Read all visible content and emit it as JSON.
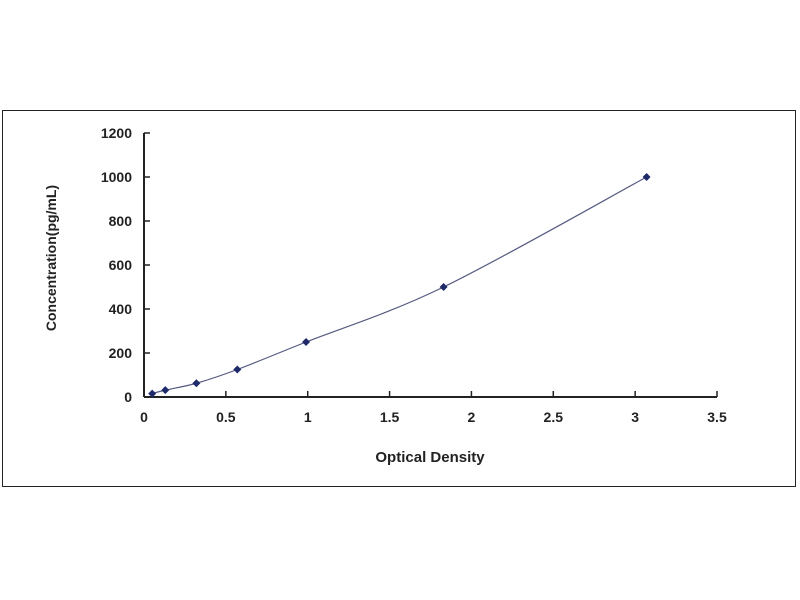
{
  "chart_data": {
    "type": "scatter",
    "title": "",
    "xlabel": "Optical Density",
    "ylabel": "Concentration(pg/mL)",
    "xlim": [
      0,
      3.5
    ],
    "ylim": [
      0,
      1200
    ],
    "xticks": [
      "0",
      "0.5",
      "1",
      "1.5",
      "2",
      "2.5",
      "3",
      "3.5"
    ],
    "yticks": [
      "0",
      "200",
      "400",
      "600",
      "800",
      "1000",
      "1200"
    ],
    "grid": false,
    "legend": "none",
    "series": [
      {
        "x": [
          0.05,
          0.13,
          0.32,
          0.57,
          0.99,
          1.83,
          3.07
        ],
        "y": [
          15.6,
          31.25,
          62.5,
          125,
          250,
          500,
          1000
        ],
        "marker": "diamond",
        "line": "smooth",
        "color": "#1f2a6b"
      }
    ]
  }
}
